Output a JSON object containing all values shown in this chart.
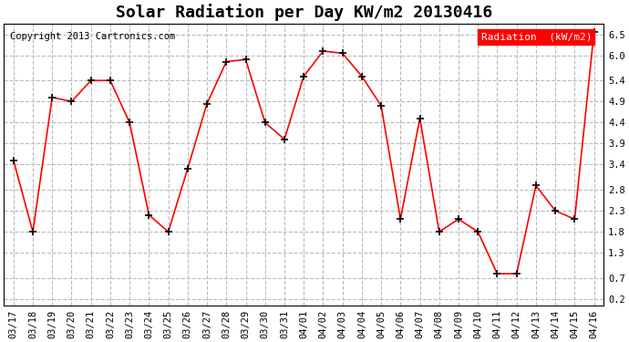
{
  "title": "Solar Radiation per Day KW/m2 20130416",
  "copyright": "Copyright 2013 Cartronics.com",
  "legend_label": "Radiation  (kW/m2)",
  "dates": [
    "03/17",
    "03/18",
    "03/19",
    "03/20",
    "03/21",
    "03/22",
    "03/23",
    "03/24",
    "03/25",
    "03/26",
    "03/27",
    "03/28",
    "03/29",
    "03/30",
    "03/31",
    "04/01",
    "04/02",
    "04/03",
    "04/04",
    "04/05",
    "04/06",
    "04/07",
    "04/08",
    "04/09",
    "04/10",
    "04/11",
    "04/12",
    "04/13",
    "04/14",
    "04/15",
    "04/16"
  ],
  "values": [
    3.5,
    1.8,
    5.0,
    4.9,
    5.4,
    5.4,
    4.4,
    2.2,
    1.8,
    3.3,
    4.85,
    5.85,
    5.9,
    4.4,
    4.0,
    5.5,
    6.1,
    6.05,
    5.5,
    4.8,
    2.1,
    4.5,
    1.8,
    2.1,
    1.8,
    0.8,
    0.8,
    2.9,
    2.3,
    2.1,
    6.55
  ],
  "line_color": "red",
  "marker": "+",
  "marker_color": "black",
  "marker_size": 6,
  "marker_linewidth": 1.2,
  "line_width": 1.2,
  "yticks": [
    0.2,
    0.7,
    1.3,
    1.8,
    2.3,
    2.8,
    3.4,
    3.9,
    4.4,
    4.9,
    5.4,
    6.0,
    6.5
  ],
  "ylim": [
    0.05,
    6.75
  ],
  "grid_color": "#bbbbbb",
  "grid_style": "--",
  "background_color": "white",
  "plot_bg": "#f0f0f0",
  "title_fontsize": 13,
  "tick_fontsize": 7.5,
  "copyright_fontsize": 7.5,
  "legend_fontsize": 8,
  "legend_bg": "red",
  "legend_text_color": "white"
}
